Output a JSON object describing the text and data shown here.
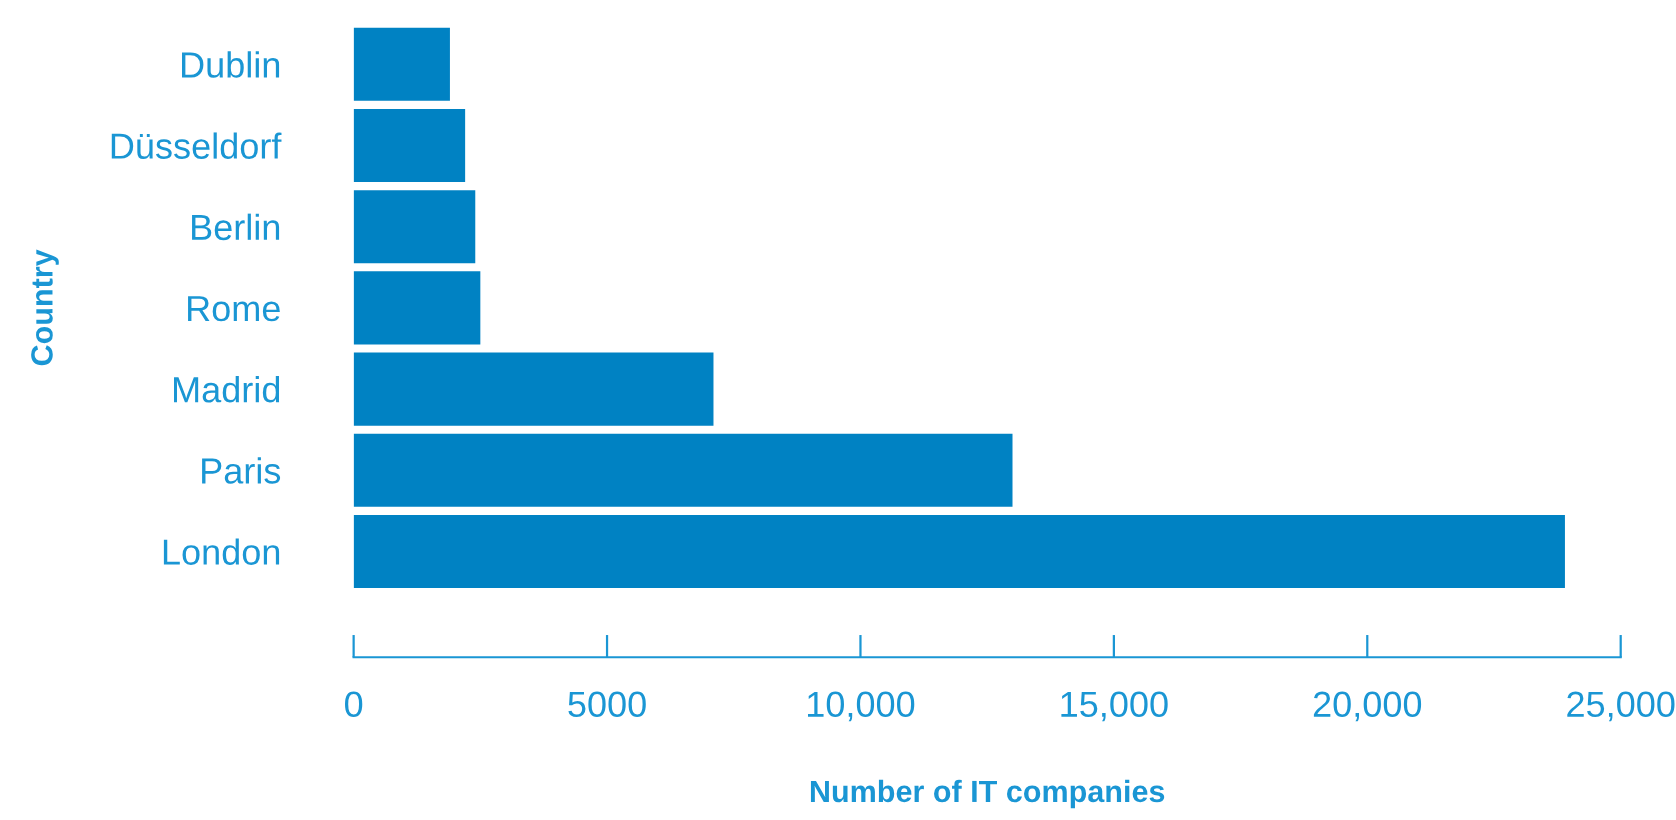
{
  "chart_data": {
    "type": "bar",
    "orientation": "horizontal",
    "categories": [
      "Dublin",
      "Düsseldorf",
      "Berlin",
      "Rome",
      "Madrid",
      "Paris",
      "London"
    ],
    "values": [
      1900,
      2200,
      2400,
      2500,
      7100,
      13000,
      23900
    ],
    "color": "#0082c3",
    "xlabel": "Number of IT companies",
    "ylabel": "Country",
    "xlim": [
      0,
      25000
    ],
    "xticks": [
      0,
      5000,
      {
        "value": 10000,
        "label": "10,000"
      },
      {
        "value": 15000,
        "label": "15,000"
      },
      {
        "value": 20000,
        "label": "20,000"
      },
      {
        "value": 25000,
        "label": "25,000"
      }
    ],
    "grid": false,
    "legend": false
  }
}
